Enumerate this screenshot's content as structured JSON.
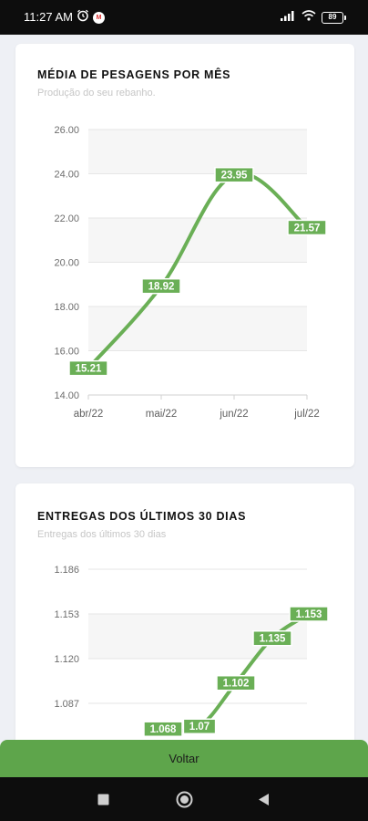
{
  "status_bar": {
    "time": "11:27 AM",
    "notification_badge": "M",
    "battery": "89",
    "icons": [
      "alarm-clock-icon",
      "app-notification-icon",
      "signal-icon",
      "wifi-icon",
      "battery-icon"
    ]
  },
  "card1": {
    "title": "MÉDIA DE PESAGENS POR MÊS",
    "subtitle": "Produção do seu rebanho."
  },
  "card2": {
    "title": "ENTREGAS DOS ÚLTIMOS 30 DIAS",
    "subtitle": "Entregas dos últimos 30 dias"
  },
  "chart_data": [
    {
      "type": "line",
      "x": [
        "abr/22",
        "mai/22",
        "jun/22",
        "jul/22"
      ],
      "values": [
        15.21,
        18.92,
        23.95,
        21.57
      ],
      "data_labels": [
        "15.21",
        "18.92",
        "23.95",
        "21.57"
      ],
      "yticks": [
        "14.00",
        "16.00",
        "18.00",
        "20.00",
        "22.00",
        "24.00",
        "26.00"
      ],
      "ylim": [
        14,
        26
      ],
      "grid": true,
      "color": "#6aaf56"
    },
    {
      "type": "line",
      "x": [
        "",
        "",
        "",
        "",
        ""
      ],
      "values": [
        1.068,
        1.07,
        1.102,
        1.135,
        1.153
      ],
      "data_labels": [
        "1.068",
        "1.07",
        "1.102",
        "1.135",
        "1.153"
      ],
      "yticks": [
        "1.087",
        "1.120",
        "1.153",
        "1.186"
      ],
      "ylim": [
        1.054,
        1.186
      ],
      "grid": true,
      "color": "#6aaf56"
    }
  ],
  "bottom_button": {
    "label": "Voltar"
  },
  "nav_bar": {
    "icons": [
      "recent-apps-icon",
      "home-icon",
      "back-icon"
    ]
  },
  "colors": {
    "accent": "#5ea54b",
    "line": "#6aaf56",
    "background": "#eef0f5"
  }
}
